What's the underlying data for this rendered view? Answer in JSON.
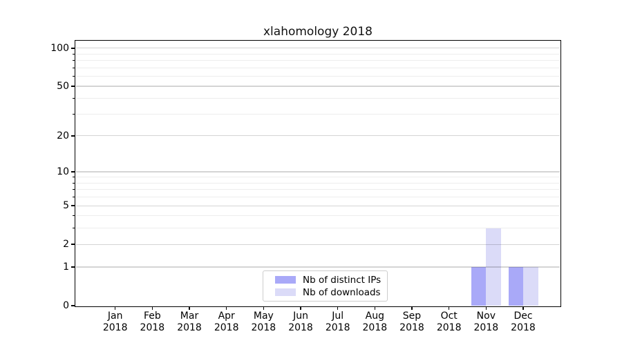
{
  "chart_data": {
    "type": "bar",
    "title": "xlahomology 2018",
    "categories": [
      "Jan",
      "Feb",
      "Mar",
      "Apr",
      "May",
      "Jun",
      "Jul",
      "Aug",
      "Sep",
      "Oct",
      "Nov",
      "Dec"
    ],
    "x_tick_year": "2018",
    "series": [
      {
        "name": "Nb of distinct IPs",
        "color": "#a9a9f8",
        "values": [
          0,
          0,
          0,
          0,
          0,
          0,
          0,
          0,
          0,
          0,
          1,
          1
        ]
      },
      {
        "name": "Nb of downloads",
        "color": "#dbdbf8",
        "values": [
          0,
          0,
          0,
          0,
          0,
          0,
          0,
          0,
          0,
          0,
          3,
          1
        ]
      }
    ],
    "xlabel": "",
    "ylabel": "",
    "y_ticks": [
      0,
      1,
      2,
      5,
      10,
      20,
      50,
      100
    ],
    "y_minor_ticks": [
      3,
      4,
      6,
      7,
      8,
      9,
      30,
      40,
      60,
      70,
      80,
      90
    ],
    "scale": "log1p",
    "ylim": [
      0,
      113
    ],
    "grid": "horizontal",
    "legend_position": "lower center",
    "axis_color": "#000000",
    "grid_major_color": "#d4d4d4",
    "grid_minor_color": "#ededed"
  }
}
